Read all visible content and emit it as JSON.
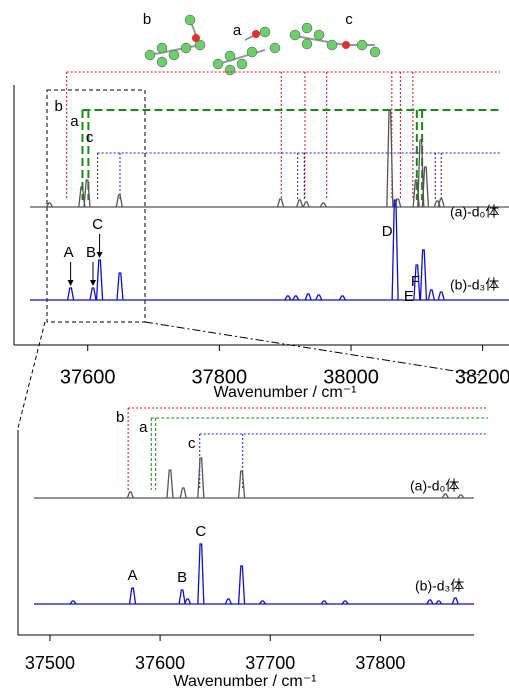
{
  "structures": [
    "b",
    "a",
    "c"
  ],
  "chart_data": [
    {
      "type": "spectrum",
      "xlim": [
        37488,
        38240
      ],
      "xticks": [
        37600,
        37800,
        38000,
        38200
      ],
      "xlabel": "Wavenumber / cm⁻¹",
      "series": [
        {
          "name": "(a)-d₀体",
          "color": "#555555",
          "x": [
            37542,
            37591,
            37599,
            37648,
            37893,
            37922,
            37932,
            37958,
            38059,
            38071,
            38099,
            38106,
            38113,
            38131,
            38137
          ],
          "values": [
            4,
            20,
            27,
            12,
            8,
            7,
            5,
            4,
            97,
            8,
            27,
            67,
            40,
            6,
            8
          ]
        },
        {
          "name": "(b)-d₃体",
          "color": "#1010cc",
          "x": [
            37574,
            37608,
            37618,
            37649,
            37904,
            37916,
            37935,
            37951,
            37987,
            38067,
            38100,
            38110,
            38122,
            38137
          ],
          "values": [
            12,
            12,
            40,
            27,
            4,
            4,
            6,
            5,
            4,
            100,
            35,
            50,
            10,
            8
          ]
        }
      ],
      "assignments": [
        {
          "name": "b",
          "color": "#e01010",
          "x": [
            37568,
            37894,
            37930,
            37963,
            38062,
            38075,
            38094
          ]
        },
        {
          "name": "a",
          "color": "#1a8a1a",
          "x": [
            37592,
            37601,
            38100,
            38108
          ]
        },
        {
          "name": "c",
          "color": "#1a1ad0",
          "x": [
            37615,
            37649,
            37919,
            37929,
            38128,
            38137
          ]
        }
      ],
      "annotations": [
        {
          "text": "A",
          "x": 37574
        },
        {
          "text": "B",
          "x": 37608
        },
        {
          "text": "C",
          "x": 37618
        },
        {
          "text": "D",
          "x": 38067
        },
        {
          "text": "E",
          "x": 38100
        },
        {
          "text": "F",
          "x": 38110
        }
      ]
    },
    {
      "type": "spectrum",
      "xlim": [
        37471,
        37885
      ],
      "xticks": [
        37500,
        37600,
        37700,
        37800
      ],
      "xlabel": "Wavenumber / cm⁻¹",
      "series": [
        {
          "name": "(a)-d₀体",
          "color": "#555555",
          "x": [
            37573,
            37609,
            37621,
            37637,
            37674,
            37859,
            37873
          ],
          "values": [
            6,
            28,
            10,
            40,
            27,
            4,
            3
          ]
        },
        {
          "name": "(b)-d₃体",
          "color": "#1010cc",
          "x": [
            37521,
            37575,
            37620,
            37625,
            37637,
            37662,
            37674,
            37693,
            37749,
            37768,
            37845,
            37853,
            37868
          ],
          "values": [
            3,
            16,
            14,
            5,
            60,
            5,
            38,
            3,
            3,
            3,
            4,
            3,
            6
          ]
        }
      ],
      "assignments": [
        {
          "name": "b",
          "color": "#e01010",
          "x": [
            37571
          ]
        },
        {
          "name": "a",
          "color": "#1a8a1a",
          "x": [
            37592,
            37596
          ]
        },
        {
          "name": "c",
          "color": "#1a1ad0",
          "x": [
            37636,
            37675
          ]
        }
      ],
      "annotations": [
        {
          "text": "A",
          "x": 37575
        },
        {
          "text": "B",
          "x": 37620
        },
        {
          "text": "C",
          "x": 37637
        }
      ]
    }
  ]
}
